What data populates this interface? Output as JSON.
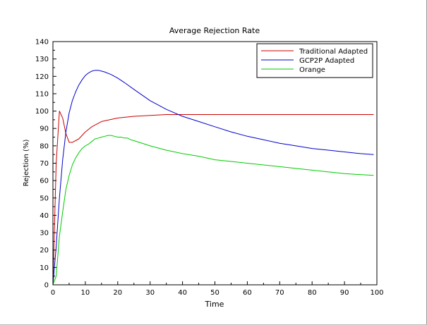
{
  "chart_data": {
    "type": "line",
    "title": "Average Rejection Rate",
    "xlabel": "Time",
    "ylabel": "Rejection (%)",
    "xlim": [
      0,
      100
    ],
    "ylim": [
      0,
      140
    ],
    "x_ticks": [
      0,
      10,
      20,
      30,
      40,
      50,
      60,
      70,
      80,
      90,
      100
    ],
    "y_ticks": [
      0,
      10,
      20,
      30,
      40,
      50,
      60,
      70,
      80,
      90,
      100,
      110,
      120,
      130,
      140
    ],
    "grid": false,
    "legend_position": "top-right",
    "series": [
      {
        "name": "Traditional Adapted",
        "color": "#cc0000",
        "x": [
          0,
          1,
          2,
          3,
          4,
          5,
          6,
          7,
          8,
          10,
          12,
          15,
          20,
          25,
          30,
          35,
          40,
          45,
          50,
          60,
          70,
          80,
          90,
          99
        ],
        "y": [
          0,
          70,
          100,
          96,
          87,
          82,
          82,
          83,
          84,
          88,
          91,
          94,
          96,
          97,
          97.5,
          98,
          98,
          98,
          98,
          98,
          98,
          98,
          98,
          98
        ]
      },
      {
        "name": "GCP2P Adapted",
        "color": "#0000cc",
        "x": [
          0,
          1,
          2,
          3,
          4,
          5,
          6,
          7,
          8,
          9,
          10,
          11,
          12,
          13,
          14,
          15,
          16,
          18,
          20,
          22,
          25,
          30,
          35,
          40,
          45,
          50,
          55,
          60,
          65,
          70,
          75,
          80,
          85,
          90,
          95,
          99
        ],
        "y": [
          0,
          22,
          50,
          72,
          88,
          99,
          106,
          111,
          115,
          118,
          120.5,
          122,
          123,
          123.5,
          123.5,
          123,
          122.5,
          121,
          119,
          116.5,
          112.5,
          106,
          101,
          97,
          94,
          91,
          88,
          85.5,
          83.5,
          81.5,
          80,
          78.5,
          77.5,
          76.5,
          75.5,
          75
        ]
      },
      {
        "name": "Orange",
        "color": "#00cc00",
        "x": [
          0,
          1,
          2,
          3,
          4,
          5,
          6,
          7,
          8,
          9,
          10,
          11,
          12,
          13,
          14,
          15,
          16,
          17,
          18,
          19,
          20,
          21,
          22,
          23,
          24,
          25,
          30,
          35,
          40,
          45,
          50,
          55,
          60,
          70,
          80,
          90,
          99
        ],
        "y": [
          0,
          5,
          28,
          42,
          55,
          63,
          69,
          73,
          76,
          78.5,
          80,
          81,
          82.5,
          84,
          84.5,
          85,
          85.5,
          86,
          86,
          85.5,
          85,
          85,
          84.5,
          84.5,
          83.5,
          83,
          80,
          77.5,
          75.5,
          74,
          72,
          71,
          70,
          68,
          66,
          64,
          63
        ]
      }
    ]
  }
}
